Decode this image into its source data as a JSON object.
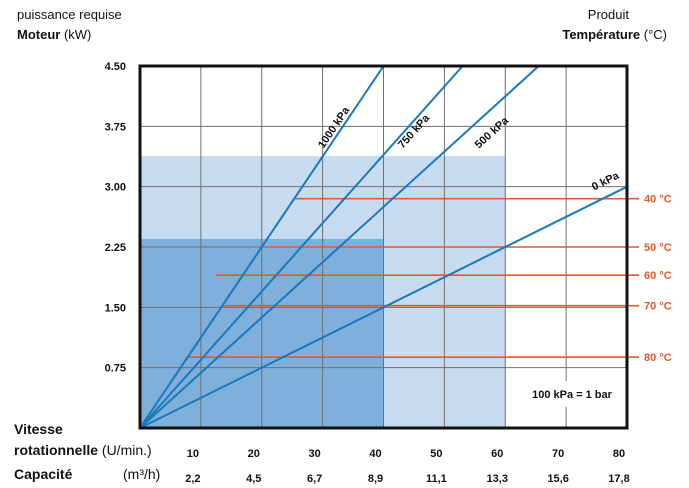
{
  "header": {
    "left_line1": "puissance requise",
    "left_line2_bold": "Moteur",
    "left_line2_unit": " (kW)",
    "right_line1": "Produit",
    "right_line2_bold": "Température",
    "right_line2_unit": " (°C)"
  },
  "rows": {
    "speed_label_1": "Vitesse",
    "speed_label_2_bold": "rotationnelle",
    "speed_label_2_unit": " (U/min.)",
    "capacity_label": "Capacité",
    "capacity_unit": "(m³/h)"
  },
  "note": "100 kPa = 1 bar",
  "chart_data": {
    "type": "line",
    "xlabel": "Vitesse rotationnelle (U/min.)",
    "ylabel": "Moteur (kW)",
    "xlim": [
      0,
      80
    ],
    "ylim": [
      0,
      4.5
    ],
    "grid": true,
    "x_ticks": [
      10,
      20,
      30,
      40,
      50,
      60,
      70,
      80
    ],
    "x_tick_labels": [
      "10",
      "20",
      "30",
      "40",
      "50",
      "60",
      "70",
      "80"
    ],
    "capacity_tick_labels": [
      "2,2",
      "4,5",
      "6,7",
      "8,9",
      "11,1",
      "13,3",
      "15,6",
      "17,8"
    ],
    "y_ticks": [
      0.75,
      1.5,
      2.25,
      3.0,
      3.75,
      4.5
    ],
    "y_tick_labels": [
      "0.75",
      "1.50",
      "2.25",
      "3.00",
      "3.75",
      "4.50"
    ],
    "series": [
      {
        "name": "1000 kPa",
        "points": [
          [
            0,
            0
          ],
          [
            40,
            4.5
          ]
        ]
      },
      {
        "name": "750 kPa",
        "points": [
          [
            0,
            0
          ],
          [
            53,
            4.5
          ]
        ]
      },
      {
        "name": "500 kPa",
        "points": [
          [
            0,
            0
          ],
          [
            65.5,
            4.5
          ]
        ]
      },
      {
        "name": "0 kPa",
        "points": [
          [
            0,
            0
          ],
          [
            80,
            3.0
          ]
        ]
      }
    ],
    "temperature_lines": [
      {
        "label": "40 °C",
        "y": 2.85,
        "x_start": 25.5
      },
      {
        "label": "50 °C",
        "y": 2.25,
        "x_start": 20
      },
      {
        "label": "60 °C",
        "y": 1.9,
        "x_start": 12.5
      },
      {
        "label": "70 °C",
        "y": 1.52,
        "x_start": 13.5
      },
      {
        "label": "80 °C",
        "y": 0.88,
        "x_start": 7.5
      }
    ],
    "regions": [
      {
        "x": [
          0,
          60
        ],
        "y": [
          0,
          3.38
        ],
        "color": "#c6dbf0"
      },
      {
        "x": [
          0,
          40
        ],
        "y": [
          0,
          2.35
        ],
        "color": "#7fb0dc"
      }
    ],
    "colors": {
      "line": "#1a78bd",
      "temperature": "#e8582b",
      "frame": "#111111",
      "grid": "#6f6f6f"
    }
  }
}
